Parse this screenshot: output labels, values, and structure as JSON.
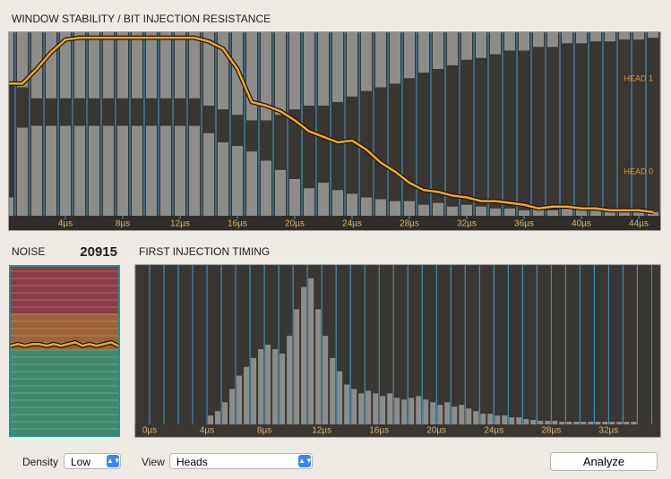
{
  "chart_data": [
    {
      "type": "combo",
      "title": "WINDOW STABILITY / BIT INJECTION RESISTANCE",
      "annotations": [
        "HEAD 1",
        "HEAD 0"
      ],
      "x": [
        0,
        1,
        2,
        3,
        4,
        5,
        6,
        7,
        8,
        9,
        10,
        11,
        12,
        13,
        14,
        15,
        16,
        17,
        18,
        19,
        20,
        21,
        22,
        23,
        24,
        25,
        26,
        27,
        28,
        29,
        30,
        31,
        32,
        33,
        34,
        35,
        36,
        37,
        38,
        39,
        40,
        41,
        42,
        43,
        44,
        45
      ],
      "upper_bars": {
        "color": "#8e8c89",
        "values": [
          28,
          30,
          36,
          36,
          36,
          36,
          36,
          36,
          36,
          36,
          36,
          36,
          36,
          36,
          40,
          42,
          45,
          48,
          48,
          45,
          42,
          40,
          40,
          38,
          35,
          32,
          30,
          28,
          25,
          22,
          20,
          18,
          15,
          14,
          12,
          10,
          10,
          8,
          8,
          6,
          6,
          5,
          5,
          4,
          4,
          3
        ]
      },
      "lower_bars": {
        "color": "#8e8c89",
        "values": [
          10,
          48,
          49,
          49,
          49,
          49,
          49,
          49,
          49,
          49,
          49,
          49,
          49,
          49,
          45,
          40,
          38,
          35,
          30,
          25,
          20,
          15,
          18,
          14,
          12,
          10,
          9,
          8,
          8,
          6,
          7,
          5,
          6,
          5,
          4,
          4,
          3,
          4,
          3,
          6,
          4,
          3,
          3,
          2,
          2,
          2
        ]
      },
      "line": {
        "color": "#f5a623",
        "values": [
          72,
          72,
          80,
          89,
          96,
          97,
          97,
          97,
          97,
          97,
          97,
          97,
          97,
          97,
          95,
          91,
          80,
          62,
          60,
          57,
          52,
          46,
          43,
          40,
          41,
          36,
          29,
          24,
          18,
          14,
          13,
          11,
          10,
          8,
          8,
          7,
          6,
          4,
          5,
          5,
          4,
          4,
          3,
          3,
          3,
          2
        ]
      },
      "xlim": [
        0,
        45.5
      ],
      "ylim": [
        0,
        100
      ],
      "xticks": [
        {
          "value": 4,
          "label": "4µs"
        },
        {
          "value": 8,
          "label": "8µs"
        },
        {
          "value": 12,
          "label": "12µs"
        },
        {
          "value": 16,
          "label": "16µs"
        },
        {
          "value": 20,
          "label": "20µs"
        },
        {
          "value": 24,
          "label": "24µs"
        },
        {
          "value": 28,
          "label": "28µs"
        },
        {
          "value": 32,
          "label": "32µs"
        },
        {
          "value": 36,
          "label": "36µs"
        },
        {
          "value": 40,
          "label": "40µs"
        },
        {
          "value": 44,
          "label": "44µs"
        }
      ]
    },
    {
      "type": "line",
      "title": "NOISE",
      "reading": 20915,
      "color": "#f5a623",
      "values": [
        53,
        54,
        53,
        54,
        54,
        53,
        54,
        53,
        54,
        55,
        53,
        54,
        53,
        54,
        55,
        53
      ],
      "ylim": [
        0,
        100
      ]
    },
    {
      "type": "histogram",
      "title": "FIRST INJECTION TIMING",
      "color": "#8e8c89",
      "bins": [
        4,
        4.5,
        5,
        5.5,
        6,
        6.5,
        7,
        7.5,
        8,
        8.5,
        9,
        9.5,
        10,
        10.5,
        11,
        11.5,
        12,
        12.5,
        13,
        13.5,
        14,
        14.5,
        15,
        15.5,
        16,
        16.5,
        17,
        17.5,
        18,
        18.5,
        19,
        19.5,
        20,
        20.5,
        21,
        21.5,
        22,
        22.5,
        23,
        23.5,
        24,
        24.5,
        25,
        25.5,
        26,
        26.5,
        27,
        27.5,
        28,
        28.5,
        29,
        29.5,
        30,
        30.5,
        31,
        31.5,
        32,
        32.5,
        33,
        33.5,
        34
      ],
      "values": [
        10,
        15,
        25,
        40,
        55,
        65,
        75,
        85,
        90,
        85,
        80,
        100,
        130,
        155,
        165,
        130,
        100,
        75,
        60,
        45,
        40,
        35,
        38,
        35,
        32,
        35,
        30,
        28,
        30,
        32,
        28,
        25,
        22,
        25,
        20,
        22,
        18,
        15,
        12,
        12,
        10,
        10,
        8,
        8,
        6,
        5,
        4,
        4,
        4,
        3,
        3,
        3,
        3,
        3,
        3,
        3,
        3,
        3,
        3,
        3
      ],
      "xlim": [
        -1,
        35.6
      ],
      "ylim": [
        0,
        180
      ],
      "xticks": [
        {
          "value": 0,
          "label": "0µs"
        },
        {
          "value": 4,
          "label": "4µs"
        },
        {
          "value": 8,
          "label": "8µs"
        },
        {
          "value": 12,
          "label": "12µs"
        },
        {
          "value": 16,
          "label": "16µs"
        },
        {
          "value": 20,
          "label": "20µs"
        },
        {
          "value": 24,
          "label": "24µs"
        },
        {
          "value": 28,
          "label": "28µs"
        },
        {
          "value": 32,
          "label": "32µs"
        }
      ]
    }
  ],
  "controls": {
    "density_label": "Density",
    "density_value": "Low",
    "view_label": "View",
    "view_value": "Heads",
    "button": "Analyze"
  }
}
